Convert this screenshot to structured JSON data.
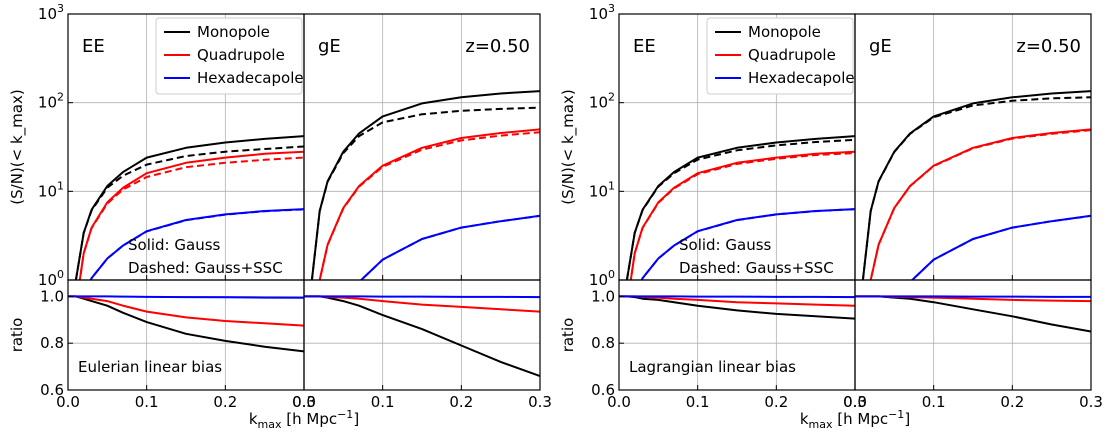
{
  "chart_data": {
    "type": "line",
    "x_tick_labels": [
      "0.0",
      "0.1",
      "0.2",
      "0.3"
    ],
    "top_y_tick_labels": [
      {
        "base": "10",
        "exp": "0"
      },
      {
        "base": "10",
        "exp": "1"
      },
      {
        "base": "10",
        "exp": "2"
      },
      {
        "base": "10",
        "exp": "3"
      }
    ],
    "ratio_tick_labels": [
      "0.6",
      "0.8",
      "1.0"
    ],
    "legend_entries": [
      {
        "label": "Monopole",
        "color": "#000000"
      },
      {
        "label": "Quadrupole",
        "color": "#ff0000"
      },
      {
        "label": "Hexadecapole",
        "color": "#0000ff"
      }
    ],
    "figures": [
      {
        "top_ylabel": "(S/N)(< k_max)",
        "bottom_ylabel": "ratio",
        "xlabel": "k_max [h Mpc^-1]",
        "legend": true,
        "note_solid": "Solid:  Gauss",
        "note_dashed": "Dashed: Gauss+SSC",
        "bias_label": "Eulerian linear bias",
        "panels": [
          {
            "corner_label": "EE",
            "redshift_label": "",
            "xlim": [
              0.0,
              0.3
            ],
            "ylim_top": [
              1,
              1000
            ],
            "ylim_ratio": [
              0.6,
              1.07
            ],
            "x": [
              0.01,
              0.02,
              0.03,
              0.05,
              0.07,
              0.1,
              0.15,
              0.2,
              0.25,
              0.3
            ],
            "series": [
              {
                "label": "Monopole",
                "color": "#000000",
                "solid": [
                  1.0,
                  3.4,
                  6.2,
                  11.5,
                  16.5,
                  24.0,
                  31.0,
                  35.5,
                  39.0,
                  42.0
                ],
                "dashed": [
                  1.0,
                  3.4,
                  6.1,
                  11.0,
                  15.0,
                  20.0,
                  25.0,
                  28.0,
                  30.0,
                  32.0
                ],
                "ratio": [
                  1.0,
                  0.99,
                  0.98,
                  0.96,
                  0.93,
                  0.89,
                  0.84,
                  0.81,
                  0.785,
                  0.765
                ]
              },
              {
                "label": "Quadrupole",
                "color": "#ff0000",
                "solid": [
                  0.5,
                  2.0,
                  3.9,
                  7.5,
                  11.0,
                  16.0,
                  21.0,
                  24.0,
                  26.5,
                  28.0
                ],
                "dashed": [
                  0.5,
                  2.0,
                  3.85,
                  7.3,
                  10.5,
                  14.5,
                  18.7,
                  21.0,
                  22.7,
                  24.0
                ],
                "ratio": [
                  1.0,
                  0.995,
                  0.99,
                  0.98,
                  0.96,
                  0.935,
                  0.91,
                  0.895,
                  0.885,
                  0.875
                ]
              },
              {
                "label": "Hexadecapole",
                "color": "#0000ff",
                "solid": [
                  0.3,
                  0.65,
                  1.05,
                  1.75,
                  2.45,
                  3.55,
                  4.75,
                  5.5,
                  6.0,
                  6.3
                ],
                "dashed": [
                  0.3,
                  0.65,
                  1.05,
                  1.75,
                  2.45,
                  3.53,
                  4.73,
                  5.47,
                  5.97,
                  6.25
                ],
                "ratio": [
                  1.0,
                  1.0,
                  1.0,
                  1.0,
                  0.999,
                  0.998,
                  0.997,
                  0.996,
                  0.995,
                  0.994
                ]
              }
            ]
          },
          {
            "corner_label": "gE",
            "redshift_label": "z=0.50",
            "xlim": [
              0.0,
              0.3
            ],
            "ylim_top": [
              1,
              1000
            ],
            "ylim_ratio": [
              0.6,
              1.07
            ],
            "x": [
              0.01,
              0.02,
              0.03,
              0.05,
              0.07,
              0.1,
              0.15,
              0.2,
              0.25,
              0.3
            ],
            "series": [
              {
                "label": "Monopole",
                "color": "#000000",
                "solid": [
                  1.0,
                  6.0,
                  13.0,
                  28.0,
                  45.0,
                  70.0,
                  98.0,
                  115.0,
                  127.0,
                  135.0
                ],
                "dashed": [
                  1.0,
                  6.0,
                  12.8,
                  27.0,
                  42.0,
                  60.0,
                  74.0,
                  81.0,
                  85.0,
                  88.0
                ],
                "ratio": [
                  1.0,
                  1.0,
                  0.995,
                  0.98,
                  0.96,
                  0.92,
                  0.86,
                  0.79,
                  0.72,
                  0.66
                ]
              },
              {
                "label": "Quadrupole",
                "color": "#ff0000",
                "solid": [
                  0.2,
                  1.0,
                  2.5,
                  6.5,
                  11.5,
                  19.5,
                  31.0,
                  40.0,
                  45.5,
                  50.0
                ],
                "dashed": [
                  0.2,
                  1.0,
                  2.48,
                  6.4,
                  11.3,
                  18.9,
                  29.5,
                  37.5,
                  42.5,
                  46.5
                ],
                "ratio": [
                  1.0,
                  1.0,
                  0.998,
                  0.995,
                  0.99,
                  0.98,
                  0.965,
                  0.955,
                  0.945,
                  0.935
                ]
              },
              {
                "label": "Hexadecapole",
                "color": "#0000ff",
                "solid": [
                  0.05,
                  0.15,
                  0.3,
                  0.6,
                  0.95,
                  1.7,
                  2.9,
                  3.9,
                  4.6,
                  5.3
                ],
                "dashed": [
                  0.05,
                  0.15,
                  0.3,
                  0.6,
                  0.95,
                  1.7,
                  2.9,
                  3.9,
                  4.6,
                  5.29
                ],
                "ratio": [
                  1.0,
                  1.0,
                  1.0,
                  1.0,
                  1.0,
                  0.999,
                  0.999,
                  0.998,
                  0.998,
                  0.997
                ]
              }
            ]
          }
        ]
      },
      {
        "top_ylabel": "(S/N)(< k_max)",
        "bottom_ylabel": "ratio",
        "xlabel": "k_max [h Mpc^-1]",
        "legend": true,
        "note_solid": "Solid:  Gauss",
        "note_dashed": "Dashed: Gauss+SSC",
        "bias_label": "Lagrangian linear bias",
        "panels": [
          {
            "corner_label": "EE",
            "redshift_label": "",
            "xlim": [
              0.0,
              0.3
            ],
            "ylim_top": [
              1,
              1000
            ],
            "ylim_ratio": [
              0.6,
              1.07
            ],
            "x": [
              0.01,
              0.02,
              0.03,
              0.05,
              0.07,
              0.1,
              0.15,
              0.2,
              0.25,
              0.3
            ],
            "series": [
              {
                "label": "Monopole",
                "color": "#000000",
                "solid": [
                  1.0,
                  3.4,
                  6.2,
                  11.5,
                  16.5,
                  24.0,
                  31.0,
                  35.5,
                  39.0,
                  42.0
                ],
                "dashed": [
                  1.0,
                  3.4,
                  6.15,
                  11.3,
                  16.0,
                  22.8,
                  29.0,
                  33.0,
                  36.0,
                  38.0
                ],
                "ratio": [
                  1.0,
                  0.997,
                  0.99,
                  0.985,
                  0.975,
                  0.96,
                  0.94,
                  0.925,
                  0.915,
                  0.905
                ]
              },
              {
                "label": "Quadrupole",
                "color": "#ff0000",
                "solid": [
                  0.5,
                  2.0,
                  3.9,
                  7.5,
                  11.0,
                  16.0,
                  21.0,
                  24.0,
                  26.5,
                  28.0
                ],
                "dashed": [
                  0.5,
                  2.0,
                  3.88,
                  7.4,
                  10.8,
                  15.6,
                  20.4,
                  23.3,
                  25.7,
                  27.0
                ],
                "ratio": [
                  1.0,
                  1.0,
                  0.998,
                  0.995,
                  0.99,
                  0.985,
                  0.975,
                  0.97,
                  0.965,
                  0.96
                ]
              },
              {
                "label": "Hexadecapole",
                "color": "#0000ff",
                "solid": [
                  0.3,
                  0.65,
                  1.05,
                  1.75,
                  2.45,
                  3.55,
                  4.75,
                  5.5,
                  6.0,
                  6.3
                ],
                "dashed": [
                  0.3,
                  0.65,
                  1.05,
                  1.75,
                  2.45,
                  3.54,
                  4.74,
                  5.49,
                  5.99,
                  6.28
                ],
                "ratio": [
                  1.0,
                  1.0,
                  1.0,
                  1.0,
                  1.0,
                  0.999,
                  0.999,
                  0.998,
                  0.998,
                  0.997
                ]
              }
            ]
          },
          {
            "corner_label": "gE",
            "redshift_label": "z=0.50",
            "xlim": [
              0.0,
              0.3
            ],
            "ylim_top": [
              1,
              1000
            ],
            "ylim_ratio": [
              0.6,
              1.07
            ],
            "x": [
              0.01,
              0.02,
              0.03,
              0.05,
              0.07,
              0.1,
              0.15,
              0.2,
              0.25,
              0.3
            ],
            "series": [
              {
                "label": "Monopole",
                "color": "#000000",
                "solid": [
                  1.0,
                  6.0,
                  13.0,
                  28.0,
                  45.0,
                  70.0,
                  98.0,
                  115.0,
                  127.0,
                  135.0
                ],
                "dashed": [
                  1.0,
                  6.0,
                  12.9,
                  27.8,
                  44.5,
                  68.5,
                  93.0,
                  105.0,
                  112.0,
                  115.0
                ],
                "ratio": [
                  1.0,
                  1.0,
                  1.0,
                  0.995,
                  0.99,
                  0.975,
                  0.945,
                  0.915,
                  0.88,
                  0.85
                ]
              },
              {
                "label": "Quadrupole",
                "color": "#ff0000",
                "solid": [
                  0.2,
                  1.0,
                  2.5,
                  6.5,
                  11.5,
                  19.5,
                  31.0,
                  40.0,
                  45.5,
                  50.0
                ],
                "dashed": [
                  0.2,
                  1.0,
                  2.5,
                  6.48,
                  11.45,
                  19.3,
                  30.6,
                  39.3,
                  44.6,
                  49.0
                ],
                "ratio": [
                  1.0,
                  1.0,
                  1.0,
                  0.998,
                  0.997,
                  0.995,
                  0.99,
                  0.985,
                  0.982,
                  0.98
                ]
              },
              {
                "label": "Hexadecapole",
                "color": "#0000ff",
                "solid": [
                  0.05,
                  0.15,
                  0.3,
                  0.6,
                  0.95,
                  1.7,
                  2.9,
                  3.9,
                  4.6,
                  5.3
                ],
                "dashed": [
                  0.05,
                  0.15,
                  0.3,
                  0.6,
                  0.95,
                  1.7,
                  2.9,
                  3.9,
                  4.6,
                  5.29
                ],
                "ratio": [
                  1.0,
                  1.0,
                  1.0,
                  1.0,
                  1.0,
                  1.0,
                  0.999,
                  0.999,
                  0.998,
                  0.998
                ]
              }
            ]
          }
        ]
      }
    ]
  }
}
